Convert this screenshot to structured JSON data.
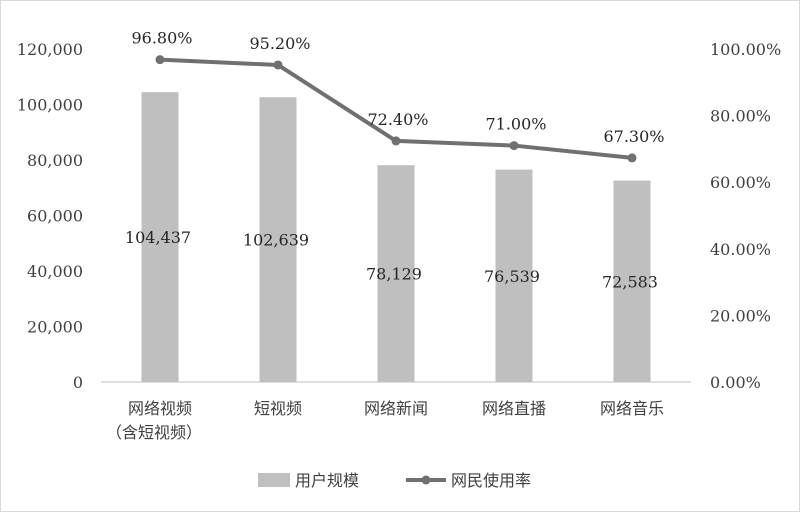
{
  "chart_data": {
    "type": "bar",
    "categories": [
      [
        "网络视频",
        "（含短视频）"
      ],
      [
        "短视频"
      ],
      [
        "网络新闻"
      ],
      [
        "网络直播"
      ],
      [
        "网络音乐"
      ]
    ],
    "series": [
      {
        "name": "用户规模",
        "type": "bar",
        "axis": "left",
        "values": [
          104437,
          102639,
          78129,
          76539,
          72583
        ],
        "labels": [
          "104,437",
          "102,639",
          "78,129",
          "76,539",
          "72,583"
        ],
        "color": "#bfbfbf"
      },
      {
        "name": "网民使用率",
        "type": "line",
        "axis": "right",
        "values": [
          96.8,
          95.2,
          72.4,
          71.0,
          67.3
        ],
        "labels": [
          "96.80%",
          "95.20%",
          "72.40%",
          "71.00%",
          "67.30%"
        ],
        "color": "#707070"
      }
    ],
    "y_left": {
      "ylim": [
        0,
        120000
      ],
      "ticks": [
        "0",
        "20,000",
        "40,000",
        "60,000",
        "80,000",
        "100,000",
        "120,000"
      ]
    },
    "y_right": {
      "ylim": [
        0,
        100
      ],
      "ticks": [
        "0.00%",
        "20.00%",
        "40.00%",
        "60.00%",
        "80.00%",
        "100.00%"
      ]
    },
    "legend": {
      "position": "bottom"
    },
    "grid": false
  }
}
